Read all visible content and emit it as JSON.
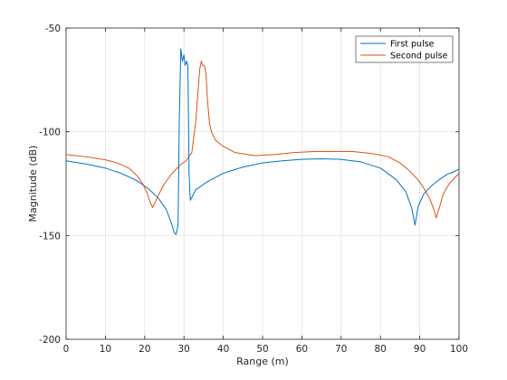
{
  "chart_data": {
    "type": "line",
    "title": "",
    "xlabel": "Range (m)",
    "ylabel": "Magnitude (dB)",
    "xlim": [
      0,
      100
    ],
    "ylim": [
      -200,
      -50
    ],
    "xticks": [
      0,
      10,
      20,
      30,
      40,
      50,
      60,
      70,
      80,
      90,
      100
    ],
    "yticks": [
      -200,
      -150,
      -100,
      -50
    ],
    "grid": true,
    "legend_position": "top-right",
    "series": [
      {
        "name": "First pulse",
        "color": "#0072BD",
        "x": [
          0,
          5,
          10,
          14,
          18,
          21,
          23.5,
          25.5,
          26.8,
          27.5,
          28,
          28.5,
          28.8,
          29.2,
          29.6,
          30,
          30.3,
          30.7,
          31,
          31.3,
          31.6,
          33,
          36,
          40,
          45,
          50,
          55,
          60,
          65,
          70,
          75,
          80,
          84,
          86.5,
          88,
          88.8,
          89.6,
          91,
          93,
          95,
          97,
          99,
          100
        ],
        "y": [
          -114,
          -115.5,
          -117.5,
          -120,
          -123.5,
          -127.5,
          -132,
          -137.5,
          -144,
          -148.5,
          -149.5,
          -145,
          -95,
          -60,
          -66,
          -63,
          -68,
          -66,
          -68,
          -120,
          -133,
          -128,
          -124,
          -120,
          -117,
          -115,
          -114,
          -113.3,
          -113,
          -113.3,
          -114.5,
          -117.5,
          -123,
          -129,
          -137,
          -145,
          -136,
          -130,
          -126,
          -123,
          -120.5,
          -119,
          -118
        ]
      },
      {
        "name": "Second pulse",
        "color": "#D95319",
        "x": [
          0,
          5,
          10,
          13,
          16,
          18,
          19.5,
          20.5,
          21.3,
          22,
          22.7,
          23.5,
          25,
          27,
          29,
          30.5,
          32,
          33,
          33.6,
          34,
          34.4,
          34.8,
          35.2,
          35.6,
          36,
          36.5,
          37,
          38,
          40,
          43,
          48,
          53,
          58,
          63,
          68,
          73,
          78,
          82,
          85,
          87.5,
          89.5,
          91,
          92.5,
          93.5,
          94.2,
          95,
          96,
          97.5,
          99,
          100
        ],
        "y": [
          -111,
          -112,
          -113.5,
          -115,
          -117.5,
          -121,
          -125,
          -129,
          -133.5,
          -136.5,
          -134,
          -130.5,
          -125,
          -120,
          -116,
          -114,
          -110,
          -95,
          -80,
          -70,
          -66,
          -68,
          -68,
          -72,
          -85,
          -96,
          -100,
          -104,
          -107,
          -110,
          -111.5,
          -111,
          -110,
          -109.5,
          -109.5,
          -109.5,
          -110.5,
          -112,
          -115,
          -119,
          -123,
          -127,
          -132,
          -137,
          -141.5,
          -136.5,
          -130,
          -125,
          -122,
          -120
        ]
      }
    ]
  }
}
